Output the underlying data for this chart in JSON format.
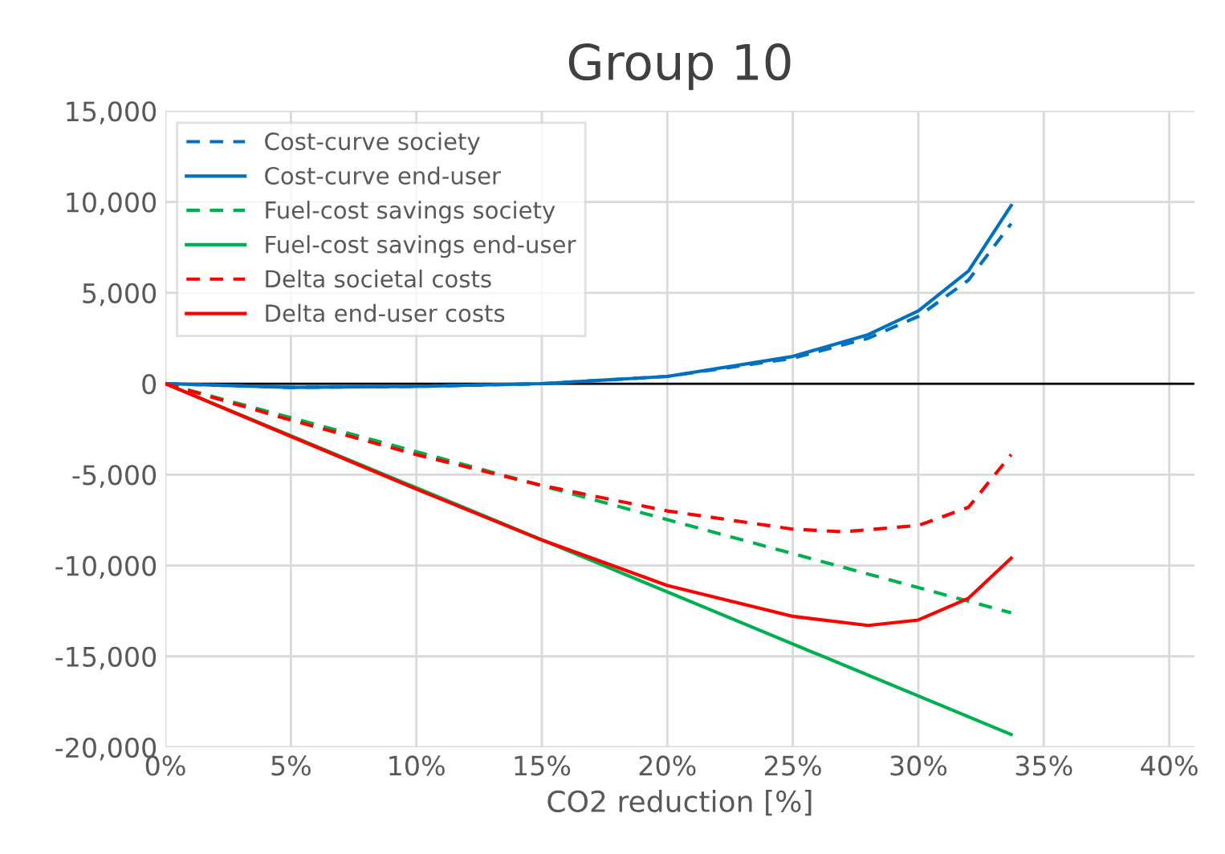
{
  "chart_data": {
    "type": "line",
    "title": "Group 10",
    "xlabel": "CO2 reduction [%]",
    "xlim": [
      0,
      41
    ],
    "xticks": [
      {
        "value": 0,
        "label": "0%"
      },
      {
        "value": 5,
        "label": "5%"
      },
      {
        "value": 10,
        "label": "10%"
      },
      {
        "value": 15,
        "label": "15%"
      },
      {
        "value": 20,
        "label": "20%"
      },
      {
        "value": 25,
        "label": "25%"
      },
      {
        "value": 30,
        "label": "30%"
      },
      {
        "value": 35,
        "label": "35%"
      },
      {
        "value": 40,
        "label": "40%"
      }
    ],
    "ylim": [
      -20000,
      15000
    ],
    "yticks": [
      {
        "value": -20000,
        "label": "-20,000"
      },
      {
        "value": -15000,
        "label": "-15,000"
      },
      {
        "value": -10000,
        "label": "-10,000"
      },
      {
        "value": -5000,
        "label": "-5,000"
      },
      {
        "value": 0,
        "label": "0"
      },
      {
        "value": 5000,
        "label": "5,000"
      },
      {
        "value": 10000,
        "label": "10,000"
      },
      {
        "value": 15000,
        "label": "15,000"
      }
    ],
    "grid": true,
    "legend": "top left",
    "marker": "none",
    "ref_lines": [
      {
        "axis": "y",
        "value": 0,
        "color": "#000000"
      }
    ],
    "series": [
      {
        "name": "Cost-curve society",
        "color": "#0070c0",
        "line_style": "dashed",
        "x": [
          0,
          5,
          10,
          15,
          20,
          25,
          28,
          30,
          32,
          33.7
        ],
        "values": [
          0,
          -200,
          -150,
          0,
          400,
          1400,
          2500,
          3700,
          5700,
          8800
        ]
      },
      {
        "name": "Cost-curve end-user",
        "color": "#0070c0",
        "line_style": "solid",
        "x": [
          0,
          5,
          10,
          15,
          20,
          25,
          28,
          30,
          32,
          33.7
        ],
        "values": [
          0,
          -200,
          -150,
          0,
          400,
          1500,
          2700,
          4000,
          6200,
          9800
        ]
      },
      {
        "name": "Fuel-cost savings society",
        "color": "#00b050",
        "line_style": "dashed",
        "x": [
          0,
          33.7
        ],
        "values": [
          0,
          -12600
        ]
      },
      {
        "name": "Fuel-cost savings end-user",
        "color": "#00b050",
        "line_style": "solid",
        "x": [
          0,
          33.7
        ],
        "values": [
          0,
          -19300
        ]
      },
      {
        "name": "Delta societal costs",
        "color": "#ff0000",
        "line_style": "dashed",
        "x": [
          0,
          5,
          10,
          15,
          20,
          25,
          27,
          30,
          32,
          33.7
        ],
        "values": [
          0,
          -2000,
          -3900,
          -5600,
          -7000,
          -8000,
          -8150,
          -7800,
          -6800,
          -3900
        ]
      },
      {
        "name": "Delta end-user costs",
        "color": "#ff0000",
        "line_style": "solid",
        "x": [
          0,
          5,
          10,
          15,
          20,
          25,
          28,
          30,
          32,
          33.7
        ],
        "values": [
          0,
          -2900,
          -5800,
          -8600,
          -11100,
          -12800,
          -13300,
          -13000,
          -11800,
          -9600
        ]
      }
    ]
  }
}
